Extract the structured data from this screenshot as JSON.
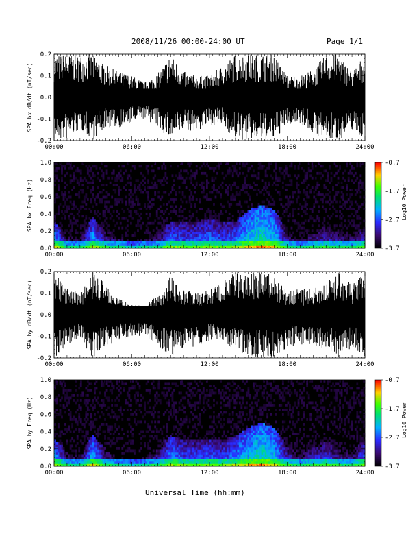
{
  "header": {
    "title": "2008/11/26  00:00-24:00 UT",
    "page": "Page 1/1"
  },
  "footer": {
    "xlabel": "Universal Time (hh:mm)"
  },
  "chart_data": [
    {
      "type": "line",
      "ylabel": "SPA bx dB/dt (nT/sec)",
      "ylim": [
        -0.2,
        0.2
      ],
      "yticks": [
        "0.2",
        "0.1",
        "0.0",
        "-0.1",
        "-0.2"
      ],
      "xlim": [
        "00:00",
        "24:00"
      ],
      "xticks": [
        "00:00",
        "06:00",
        "12:00",
        "18:00",
        "24:00"
      ],
      "series": [
        {
          "x": [
            "00:00",
            "01:00",
            "02:00",
            "03:00",
            "04:00",
            "05:00",
            "06:00",
            "07:00",
            "08:00",
            "09:00",
            "10:00",
            "11:00",
            "12:00",
            "13:00",
            "14:00",
            "15:00",
            "16:00",
            "17:00",
            "18:00",
            "19:00",
            "20:00",
            "21:00",
            "22:00",
            "23:00",
            "24:00"
          ],
          "max": [
            0.2,
            0.2,
            0.2,
            0.2,
            0.15,
            0.12,
            0.1,
            0.07,
            0.11,
            0.2,
            0.12,
            0.1,
            0.1,
            0.15,
            0.2,
            0.2,
            0.2,
            0.2,
            0.1,
            0.1,
            0.13,
            0.2,
            0.2,
            0.12,
            0.2
          ],
          "min": [
            -0.2,
            -0.2,
            -0.15,
            -0.2,
            -0.14,
            -0.14,
            -0.12,
            -0.1,
            -0.14,
            -0.2,
            -0.15,
            -0.16,
            -0.13,
            -0.13,
            -0.2,
            -0.2,
            -0.2,
            -0.2,
            -0.13,
            -0.12,
            -0.17,
            -0.2,
            -0.2,
            -0.15,
            -0.2
          ]
        }
      ]
    },
    {
      "type": "heatmap",
      "ylabel": "SPA bx Freq (Hz)",
      "ylim": [
        0.0,
        1.0
      ],
      "yticks": [
        "1.0",
        "0.8",
        "0.6",
        "0.4",
        "0.2",
        "0.0"
      ],
      "xlim": [
        "00:00",
        "24:00"
      ],
      "xticks": [
        "00:00",
        "06:00",
        "12:00",
        "18:00",
        "24:00"
      ],
      "colorbar": {
        "label": "Log10 Power",
        "range": [
          -3.7,
          -0.7
        ],
        "ticks": [
          "-0.7",
          "-1.7",
          "-2.7",
          "-3.7"
        ]
      },
      "x": [
        "00:00",
        "01:00",
        "02:00",
        "03:00",
        "04:00",
        "05:00",
        "06:00",
        "07:00",
        "08:00",
        "09:00",
        "10:00",
        "11:00",
        "12:00",
        "13:00",
        "14:00",
        "15:00",
        "16:00",
        "17:00",
        "18:00",
        "19:00",
        "20:00",
        "21:00",
        "22:00",
        "23:00",
        "24:00"
      ],
      "upper_edge_hz": [
        0.3,
        0.18,
        0.16,
        0.35,
        0.2,
        0.18,
        0.12,
        0.15,
        0.2,
        0.3,
        0.3,
        0.3,
        0.35,
        0.3,
        0.3,
        0.45,
        0.5,
        0.45,
        0.2,
        0.15,
        0.2,
        0.25,
        0.2,
        0.18,
        0.25
      ],
      "intensity": [
        -2.2,
        -3.0,
        -3.1,
        -2.3,
        -2.9,
        -3.0,
        -3.3,
        -3.1,
        -3.0,
        -2.5,
        -2.6,
        -2.6,
        -2.5,
        -2.6,
        -2.5,
        -2.2,
        -2.0,
        -2.2,
        -2.9,
        -3.1,
        -2.9,
        -2.8,
        -2.9,
        -3.0,
        -2.6
      ]
    },
    {
      "type": "line",
      "ylabel": "SPA by dB/dt (nT/sec)",
      "ylim": [
        -0.2,
        0.2
      ],
      "yticks": [
        "0.2",
        "0.1",
        "0.0",
        "-0.1",
        "-0.2"
      ],
      "xlim": [
        "00:00",
        "24:00"
      ],
      "xticks": [
        "00:00",
        "06:00",
        "12:00",
        "18:00",
        "24:00"
      ],
      "series": [
        {
          "x": [
            "00:00",
            "01:00",
            "02:00",
            "03:00",
            "04:00",
            "05:00",
            "06:00",
            "07:00",
            "08:00",
            "09:00",
            "10:00",
            "11:00",
            "12:00",
            "13:00",
            "14:00",
            "15:00",
            "16:00",
            "17:00",
            "18:00",
            "19:00",
            "20:00",
            "21:00",
            "22:00",
            "23:00",
            "24:00"
          ],
          "max": [
            0.2,
            0.12,
            0.1,
            0.2,
            0.15,
            0.08,
            0.05,
            0.04,
            0.09,
            0.18,
            0.12,
            0.1,
            0.12,
            0.15,
            0.2,
            0.2,
            0.2,
            0.18,
            0.11,
            0.12,
            0.12,
            0.15,
            0.2,
            0.14,
            0.2
          ],
          "min": [
            -0.2,
            -0.15,
            -0.12,
            -0.2,
            -0.16,
            -0.12,
            -0.1,
            -0.1,
            -0.15,
            -0.2,
            -0.16,
            -0.15,
            -0.12,
            -0.13,
            -0.16,
            -0.2,
            -0.2,
            -0.2,
            -0.15,
            -0.14,
            -0.14,
            -0.16,
            -0.2,
            -0.15,
            -0.2
          ]
        }
      ]
    },
    {
      "type": "heatmap",
      "ylabel": "SPA by Freq (Hz)",
      "ylim": [
        0.0,
        1.0
      ],
      "yticks": [
        "1.0",
        "0.8",
        "0.6",
        "0.4",
        "0.2",
        "0.0"
      ],
      "xlim": [
        "00:00",
        "24:00"
      ],
      "xticks": [
        "00:00",
        "06:00",
        "12:00",
        "18:00",
        "24:00"
      ],
      "colorbar": {
        "label": "Log10 Power",
        "range": [
          -3.7,
          -0.7
        ],
        "ticks": [
          "-0.7",
          "-1.7",
          "-2.7",
          "-3.7"
        ]
      },
      "x": [
        "00:00",
        "01:00",
        "02:00",
        "03:00",
        "04:00",
        "05:00",
        "06:00",
        "07:00",
        "08:00",
        "09:00",
        "10:00",
        "11:00",
        "12:00",
        "13:00",
        "14:00",
        "15:00",
        "16:00",
        "17:00",
        "18:00",
        "19:00",
        "20:00",
        "21:00",
        "22:00",
        "23:00",
        "24:00"
      ],
      "upper_edge_hz": [
        0.3,
        0.2,
        0.15,
        0.35,
        0.2,
        0.15,
        0.12,
        0.15,
        0.22,
        0.35,
        0.3,
        0.3,
        0.3,
        0.3,
        0.35,
        0.45,
        0.5,
        0.45,
        0.25,
        0.2,
        0.25,
        0.28,
        0.22,
        0.2,
        0.3
      ],
      "intensity": [
        -2.2,
        -3.0,
        -3.1,
        -2.2,
        -2.9,
        -3.1,
        -3.3,
        -3.1,
        -2.9,
        -2.4,
        -2.6,
        -2.6,
        -2.5,
        -2.6,
        -2.4,
        -2.2,
        -2.0,
        -2.2,
        -2.8,
        -3.0,
        -2.8,
        -2.7,
        -2.9,
        -3.0,
        -2.5
      ]
    }
  ]
}
